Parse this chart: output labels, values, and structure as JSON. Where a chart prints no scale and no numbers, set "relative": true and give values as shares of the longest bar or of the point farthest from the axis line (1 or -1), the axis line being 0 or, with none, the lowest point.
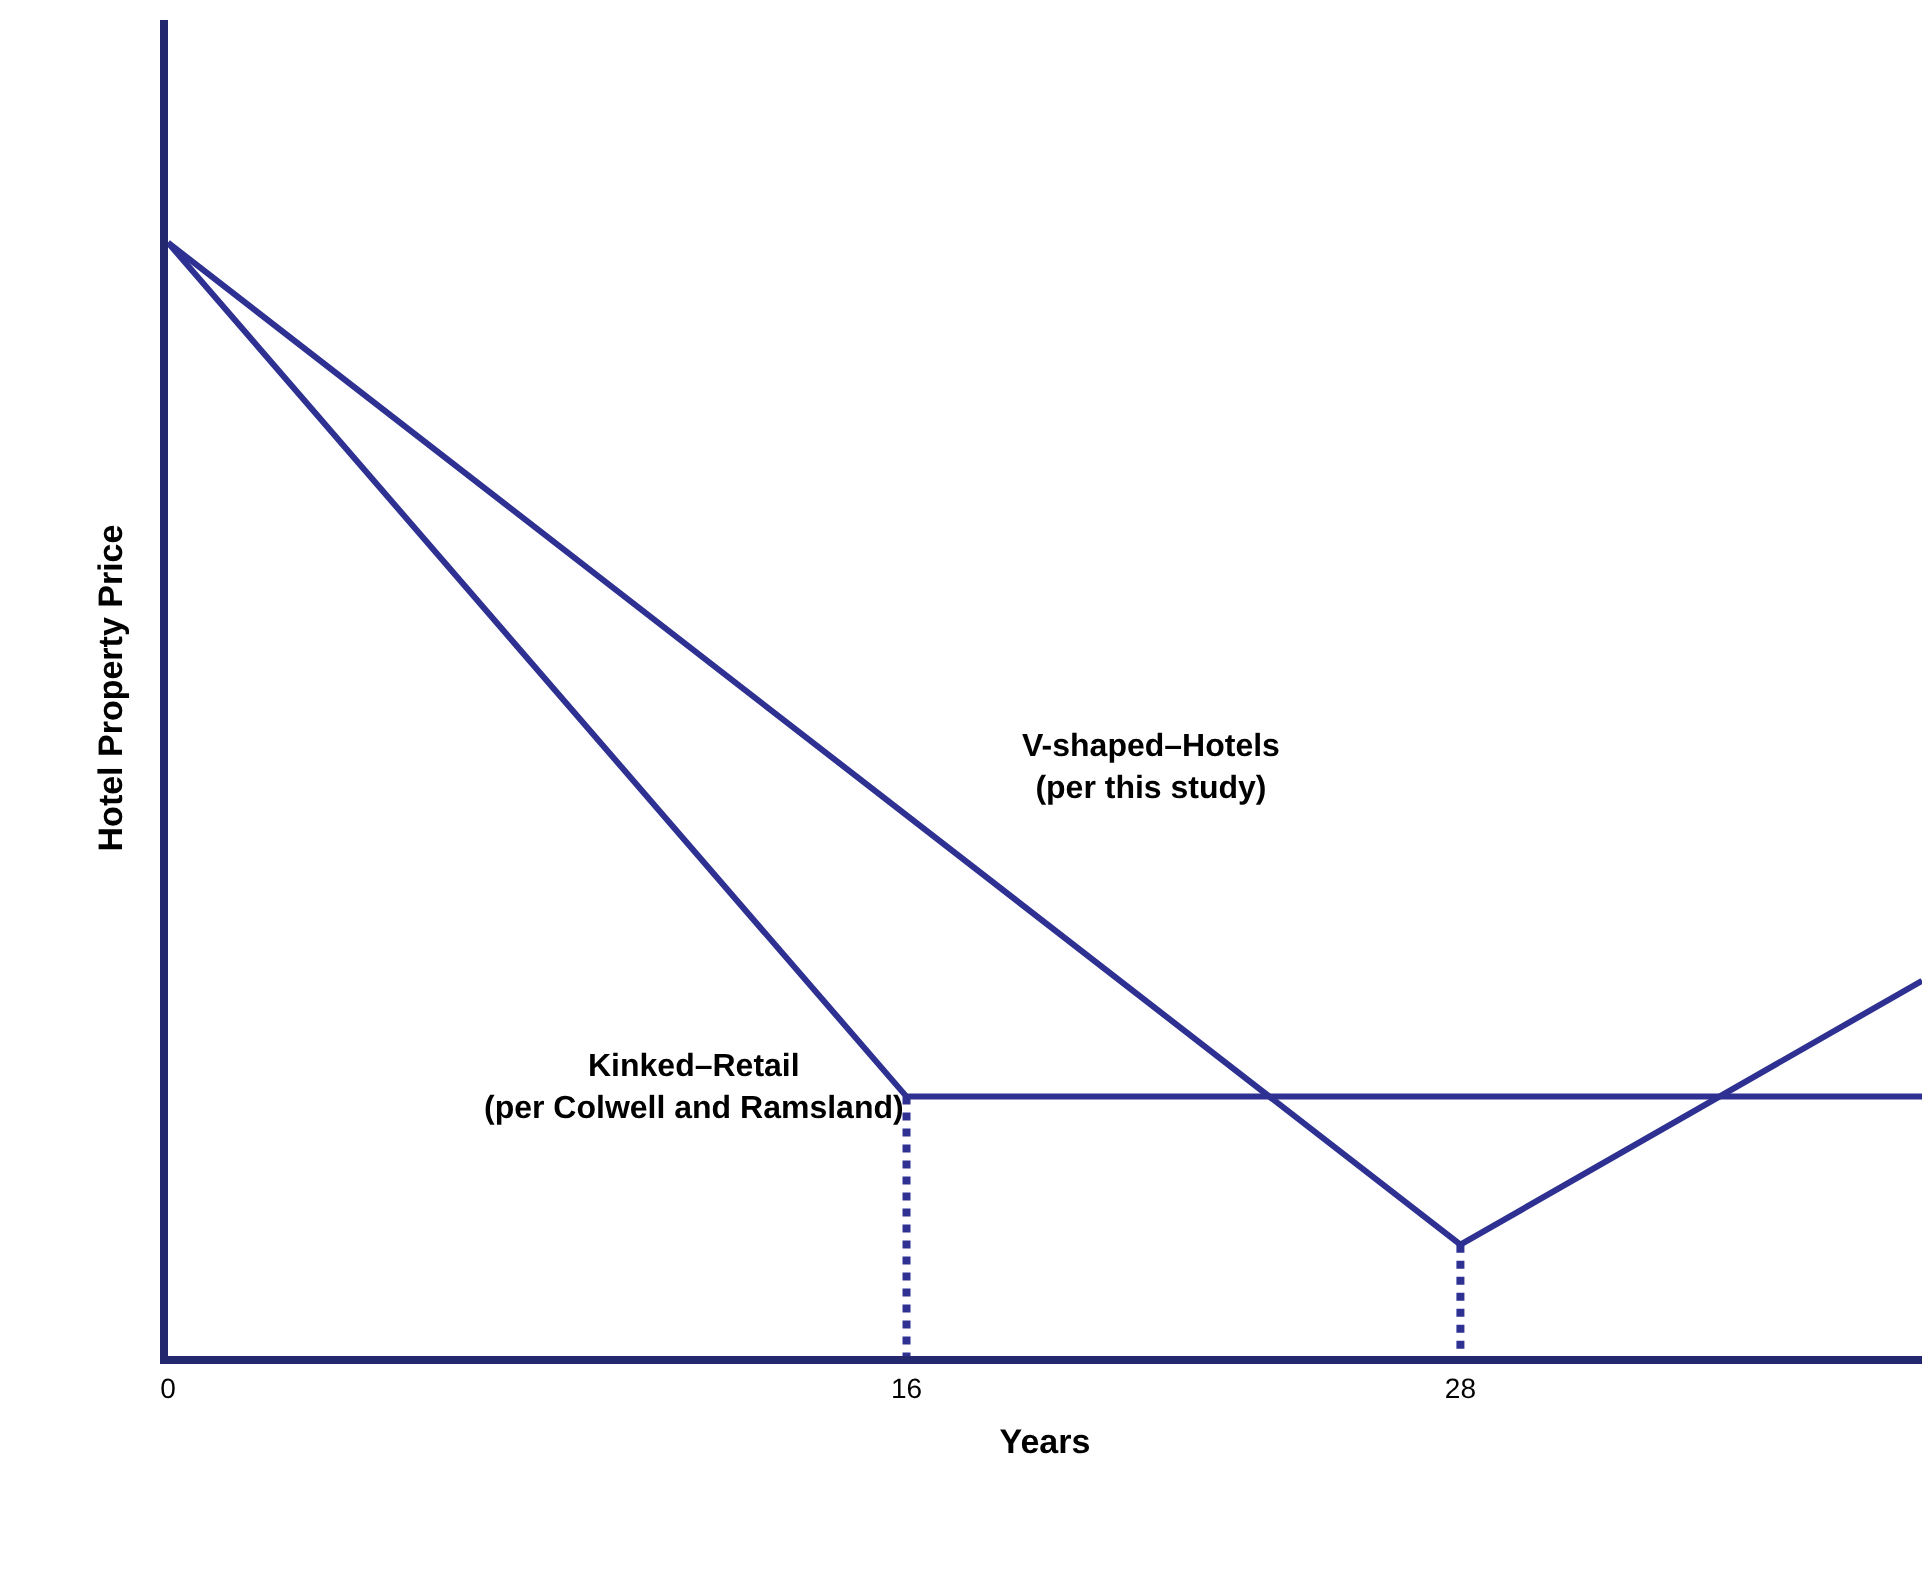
{
  "chart_data": {
    "type": "line",
    "xlabel": "Years",
    "ylabel": "Hotel Property Price",
    "relative": true,
    "xlim": [
      0,
      38
    ],
    "xticks": [
      0,
      16,
      28
    ],
    "tick_labels": "x",
    "series": [
      {
        "color": "#2e3192",
        "x": [
          0,
          16,
          38
        ],
        "values": [
          1,
          0.233,
          0.233
        ]
      },
      {
        "color": "#2e3192",
        "x": [
          0,
          28,
          38
        ],
        "values": [
          1,
          0.1,
          0.337
        ]
      },
      {
        "color": "#2e3192",
        "x": [
          16,
          16
        ],
        "values": [
          0.233,
          0
        ],
        "line_style": "dotted"
      },
      {
        "color": "#2e3192",
        "x": [
          28,
          28
        ],
        "values": [
          0.1,
          0
        ],
        "line_style": "dotted"
      }
    ],
    "annotations": [
      "V-shaped–Hotels\n(per this study)",
      "Kinked–Retail\n(per Colwell and Ramsland)"
    ]
  }
}
